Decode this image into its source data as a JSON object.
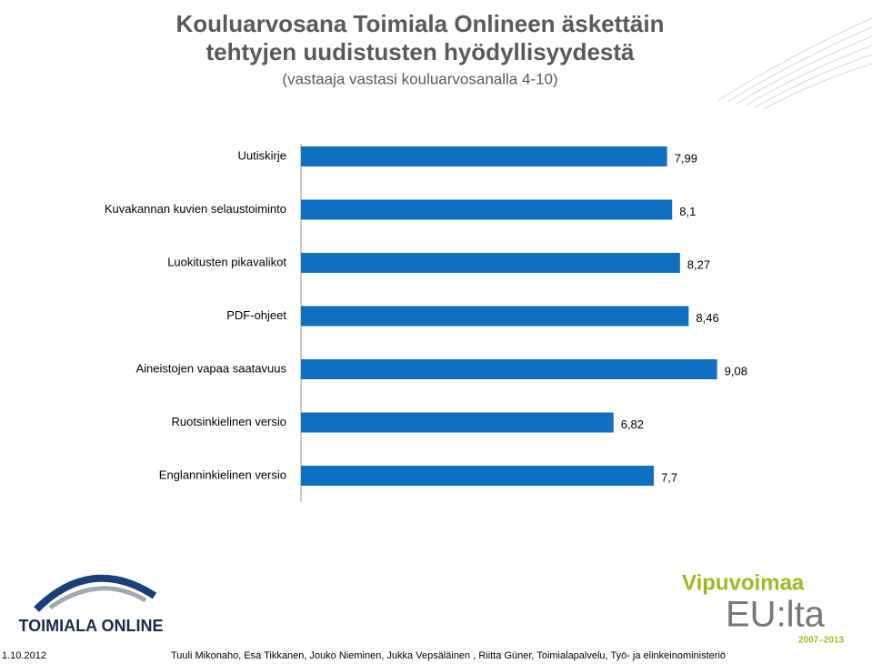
{
  "chart_data": {
    "type": "barh",
    "title": [
      "Kouluarvosana Toimiala Onlineen äskettäin",
      "tehtyjen uudistusten hyödyllisyydestä"
    ],
    "subtitle": "(vastaaja vastasi kouluarvosanalla 4-10)",
    "categories": [
      "Uutiskirje",
      "Kuvakannan kuvien selaustoiminto",
      "Luokitusten pikavalikot",
      "PDF-ohjeet",
      "Aineistojen vapaa saatavuus",
      "Ruotsinkielinen versio",
      "Englanninkielinen versio"
    ],
    "values": [
      7.99,
      8.1,
      8.27,
      8.46,
      9.08,
      6.82,
      7.7
    ],
    "value_labels": [
      "7,99",
      "8,1",
      "8,27",
      "8,46",
      "9,08",
      "6,82",
      "7,7"
    ],
    "color": "#0f6fc0",
    "xlim": [
      0,
      10
    ]
  },
  "footer": {
    "date": "1.10.2012",
    "authors": "Tuuli Mikonaho, Esa Tikkanen, Jouko Nieminen, Jukka Vepsäläinen , Riitta Güner, Toimialapalvelu, Työ- ja elinkeinoministeriö"
  },
  "logos": {
    "left": "TOIMIALA ONLINE",
    "right_top": "Vipuvoimaa",
    "right_main": "EU:lta",
    "right_years": "2007–2013"
  }
}
